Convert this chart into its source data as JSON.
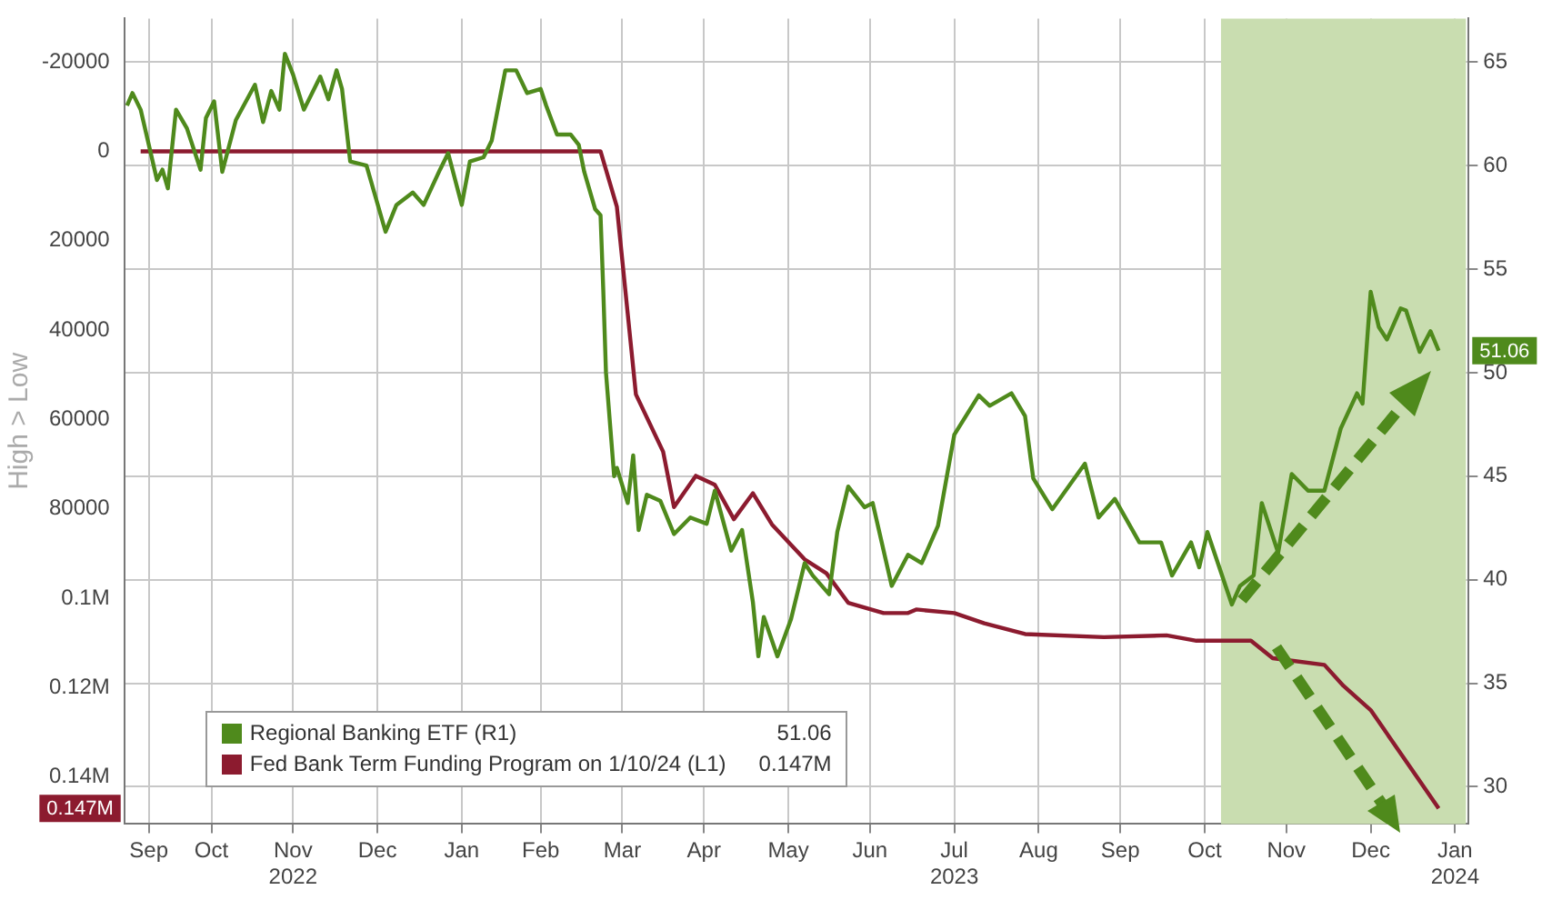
{
  "chart_data": {
    "type": "line",
    "ylabel": "High > Low",
    "marker": "none",
    "line_style": "solid",
    "grid": true,
    "legend": "bottom left",
    "xlim": [
      "2022-09-14",
      "2024-01-21"
    ],
    "xticks": [
      {
        "value": "2022-09-23",
        "label": "Sep"
      },
      {
        "value": "2022-10-16",
        "label": "Oct"
      },
      {
        "value": "2022-11-15",
        "label": "Nov\n2022"
      },
      {
        "value": "2022-12-16",
        "label": "Dec"
      },
      {
        "value": "2023-01-16",
        "label": "Jan"
      },
      {
        "value": "2023-02-14",
        "label": "Feb"
      },
      {
        "value": "2023-03-16",
        "label": "Mar"
      },
      {
        "value": "2023-04-15",
        "label": "Apr"
      },
      {
        "value": "2023-05-16",
        "label": "May"
      },
      {
        "value": "2023-06-15",
        "label": "Jun"
      },
      {
        "value": "2023-07-16",
        "label": "Jul\n2023"
      },
      {
        "value": "2023-08-16",
        "label": "Aug"
      },
      {
        "value": "2023-09-15",
        "label": "Sep"
      },
      {
        "value": "2023-10-16",
        "label": "Oct"
      },
      {
        "value": "2023-11-15",
        "label": "Nov"
      },
      {
        "value": "2023-12-16",
        "label": "Dec"
      },
      {
        "value": "2024-01-16",
        "label": "Jan\n2024"
      }
    ],
    "ylim": [
      150500,
      -29700
    ],
    "yticks": [
      {
        "value": -20000,
        "label": "-20000"
      },
      0,
      20000,
      40000,
      60000,
      80000,
      {
        "value": 100000,
        "label": "0.1M"
      },
      {
        "value": 120000,
        "label": "0.12M"
      },
      {
        "value": 140000,
        "label": "0.14M"
      }
    ],
    "y2lim": [
      28.2,
      67.1
    ],
    "y2ticks": [
      30,
      35,
      40,
      45,
      50,
      55,
      60,
      65
    ],
    "bands": [
      {
        "axis": "x",
        "from": "2023-10-22",
        "to": "2024-01-20",
        "color": "#c9ddb0"
      }
    ],
    "annotations": [
      "51.06",
      "0.147M"
    ],
    "series": [
      {
        "name": "Regional Banking ETF (R1)",
        "color": "#4f8a1c",
        "axis": "y2",
        "x": [
          "2022-09-15",
          "2022-09-17",
          "2022-09-20",
          "2022-09-26",
          "2022-09-28",
          "2022-09-30",
          "2022-10-03",
          "2022-10-07",
          "2022-10-12",
          "2022-10-14",
          "2022-10-17",
          "2022-10-20",
          "2022-10-25",
          "2022-11-01",
          "2022-11-04",
          "2022-11-07",
          "2022-11-10",
          "2022-11-12",
          "2022-11-15",
          "2022-11-19",
          "2022-11-25",
          "2022-11-28",
          "2022-12-01",
          "2022-12-03",
          "2022-12-06",
          "2022-12-12",
          "2022-12-19",
          "2022-12-23",
          "2022-12-29",
          "2023-01-02",
          "2023-01-08",
          "2023-01-11",
          "2023-01-16",
          "2023-01-19",
          "2023-01-24",
          "2023-01-27",
          "2023-02-01",
          "2023-02-05",
          "2023-02-09",
          "2023-02-14",
          "2023-02-16",
          "2023-02-20",
          "2023-02-25",
          "2023-02-28",
          "2023-03-02",
          "2023-03-06",
          "2023-03-08",
          "2023-03-09",
          "2023-03-10",
          "2023-03-13",
          "2023-03-14",
          "2023-03-18",
          "2023-03-20",
          "2023-03-22",
          "2023-03-25",
          "2023-03-30",
          "2023-04-04",
          "2023-04-10",
          "2023-04-16",
          "2023-04-19",
          "2023-04-25",
          "2023-04-29",
          "2023-05-03",
          "2023-05-05",
          "2023-05-07",
          "2023-05-12",
          "2023-05-17",
          "2023-05-22",
          "2023-05-25",
          "2023-05-31",
          "2023-06-03",
          "2023-06-07",
          "2023-06-13",
          "2023-06-16",
          "2023-06-23",
          "2023-06-29",
          "2023-07-04",
          "2023-07-10",
          "2023-07-16",
          "2023-07-25",
          "2023-07-29",
          "2023-08-06",
          "2023-08-11",
          "2023-08-14",
          "2023-08-21",
          "2023-09-02",
          "2023-09-07",
          "2023-09-13",
          "2023-09-22",
          "2023-09-30",
          "2023-10-04",
          "2023-10-11",
          "2023-10-14",
          "2023-10-17",
          "2023-10-26",
          "2023-10-29",
          "2023-11-03",
          "2023-11-06",
          "2023-11-12",
          "2023-11-17",
          "2023-11-23",
          "2023-11-29",
          "2023-12-05",
          "2023-12-11",
          "2023-12-13",
          "2023-12-16",
          "2023-12-19",
          "2023-12-22",
          "2023-12-27",
          "2023-12-29",
          "2024-01-03",
          "2024-01-07",
          "2024-01-10"
        ],
        "values": [
          62.9,
          63.5,
          62.7,
          59.3,
          59.8,
          58.9,
          62.7,
          61.8,
          59.8,
          62.3,
          63.1,
          59.7,
          62.2,
          63.9,
          62.1,
          63.6,
          62.7,
          65.4,
          64.4,
          62.7,
          64.3,
          63.2,
          64.6,
          63.7,
          60.2,
          60.0,
          56.8,
          58.1,
          58.7,
          58.1,
          59.8,
          60.6,
          58.1,
          60.2,
          60.4,
          61.2,
          64.6,
          64.6,
          63.5,
          63.7,
          62.9,
          61.5,
          61.5,
          61.0,
          59.7,
          57.9,
          57.6,
          54.0,
          50.0,
          45.0,
          45.4,
          43.7,
          46.0,
          42.4,
          44.1,
          43.8,
          42.2,
          43.0,
          42.7,
          44.3,
          41.4,
          42.4,
          38.9,
          36.3,
          38.2,
          36.3,
          38.1,
          40.8,
          40.2,
          39.3,
          42.3,
          44.5,
          43.5,
          43.7,
          39.7,
          41.2,
          40.8,
          42.6,
          47.0,
          48.9,
          48.4,
          49.0,
          47.9,
          44.9,
          43.4,
          45.6,
          43.0,
          43.9,
          41.8,
          41.8,
          40.2,
          41.8,
          40.6,
          42.3,
          38.8,
          39.7,
          40.2,
          43.7,
          41.3,
          45.1,
          44.3,
          44.3,
          47.3,
          49.0,
          48.5,
          53.9,
          52.2,
          51.6,
          53.1,
          53.0,
          51.0,
          52.0,
          51.06
        ]
      },
      {
        "name": "Fed Bank Term Funding Program on 1/10/24 (L1)",
        "color": "#8c1b2f",
        "axis": "y",
        "x": [
          "2022-09-20",
          "2023-03-08",
          "2023-03-14",
          "2023-03-21",
          "2023-03-31",
          "2023-04-04",
          "2023-04-12",
          "2023-04-19",
          "2023-04-26",
          "2023-05-03",
          "2023-05-10",
          "2023-05-22",
          "2023-05-30",
          "2023-06-07",
          "2023-06-20",
          "2023-06-29",
          "2023-07-02",
          "2023-07-16",
          "2023-07-27",
          "2023-08-11",
          "2023-09-09",
          "2023-10-02",
          "2023-10-13",
          "2023-11-02",
          "2023-11-10",
          "2023-11-29",
          "2023-12-06",
          "2023-12-16",
          "2024-01-10"
        ],
        "values": [
          0,
          0,
          12400,
          54400,
          67200,
          79600,
          72600,
          74600,
          82300,
          76500,
          83500,
          91300,
          94400,
          101000,
          103300,
          103300,
          102500,
          103300,
          105600,
          108000,
          108700,
          108300,
          109500,
          109500,
          113400,
          114900,
          119600,
          125000,
          147000
        ]
      }
    ]
  }
}
